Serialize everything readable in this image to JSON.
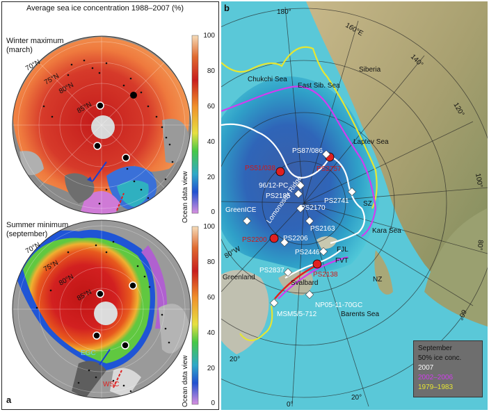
{
  "panel_a": {
    "letter": "a",
    "title": "Average sea ice concentration 1988–2007 (%)",
    "winter_label_1": "Winter maximum",
    "winter_label_2": "(march)",
    "summer_label_1": "Summer minimum",
    "summer_label_2": "(september)",
    "lat_70": "70°N",
    "lat_75": "75°N",
    "lat_80": "80°N",
    "lat_85": "85°N",
    "egc": "EGC",
    "wsc": "WSC",
    "colorbar": {
      "title": "Ocean data view",
      "ticks": [
        "100",
        "80",
        "60",
        "40",
        "20",
        "0"
      ],
      "colors": [
        "#f2d2a8",
        "#c81e1e",
        "#f07828",
        "#46c846",
        "#2878dc",
        "#dc8cdc"
      ]
    }
  },
  "panel_b": {
    "letter": "b",
    "longitudes": [
      "180°",
      "160°E",
      "140°",
      "120°",
      "100°",
      "80°",
      "60°",
      "20°",
      "0°",
      "20°",
      "80°W"
    ],
    "seas": [
      "Chukchi Sea",
      "East Sib. Sea",
      "Siberia",
      "Laptev Sea",
      "Kara Sea",
      "Barents Sea",
      "Greenland",
      "Svalbard",
      "SZ",
      "NZ",
      "FJL",
      "FVT",
      "Lomonosov Ridge"
    ],
    "stations_red": [
      "PS51/038",
      "PS2757",
      "PS2200",
      "PS2138"
    ],
    "stations_white": [
      "PS87/086",
      "96/12-PC",
      "PS2185",
      "PS2170",
      "PS2741",
      "GreenICE",
      "PS2163",
      "PS2206",
      "PS2446",
      "PS2837",
      "MSM5/5-712",
      "NP05-11-70GC"
    ],
    "legend": {
      "title": "September",
      "subtitle": "50% ice conc.",
      "entries": [
        {
          "label": "2007",
          "color": "#ffffff"
        },
        {
          "label": "2002–2006",
          "color": "#d23cf0"
        },
        {
          "label": "1979–1983",
          "color": "#e6e632"
        }
      ]
    }
  }
}
